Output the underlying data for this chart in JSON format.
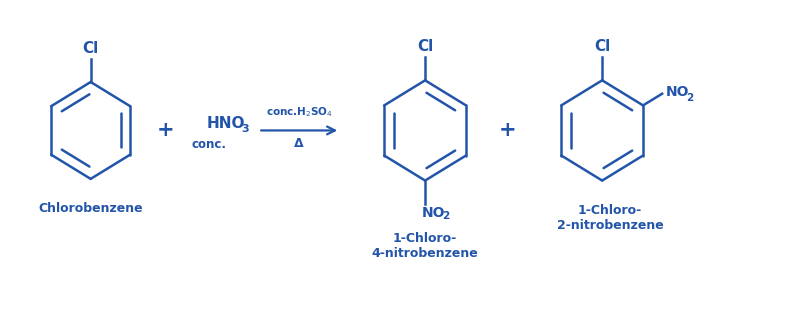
{
  "background_color": "#ffffff",
  "line_color": "#2255aa",
  "text_color": "#2255aa",
  "figsize": [
    8.03,
    3.11
  ],
  "dpi": 100,
  "xlim": [
    0,
    10
  ],
  "ylim": [
    0,
    3.5
  ]
}
